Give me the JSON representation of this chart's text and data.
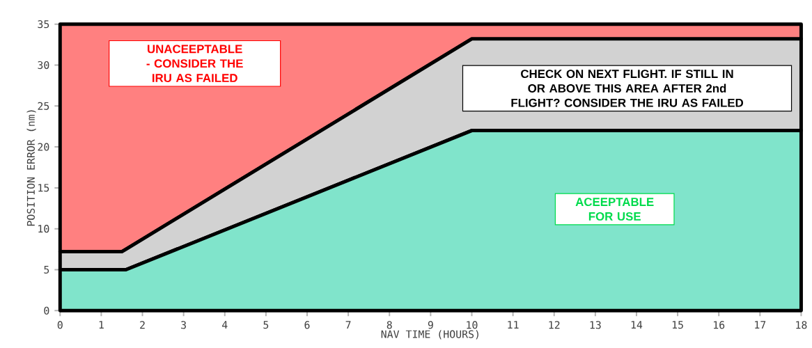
{
  "chart_data": {
    "type": "area",
    "stacked": true,
    "xlabel": "NAV TIME (HOURS)",
    "ylabel": "POSITION ERROR (nm)",
    "x": [
      0,
      1.5,
      1.6,
      10,
      18
    ],
    "series": [
      {
        "color": "#80e4cb",
        "values": [
          5,
          5,
          5,
          22,
          22
        ]
      },
      {
        "color": "#d2d2d2",
        "values": [
          2.2,
          2.2,
          2.5,
          11.2,
          11.2
        ]
      },
      {
        "color": "#ff8080",
        "values": [
          27.8,
          27.8,
          27.5,
          1.8,
          1.8
        ]
      }
    ],
    "xlim": [
      0,
      18
    ],
    "ylim": [
      0,
      35
    ],
    "xticks": [
      0,
      1,
      2,
      3,
      4,
      5,
      6,
      7,
      8,
      9,
      10,
      11,
      12,
      13,
      14,
      15,
      16,
      17,
      18
    ],
    "yticks": [
      0,
      5,
      10,
      15,
      20,
      25,
      30,
      35
    ],
    "annotations": [
      "UNACEEPTABLE - CONSIDER THE IRU AS FAILED",
      "CHECK ON NEXT FLIGHT.  IF STILL IN OR ABOVE THIS AREA AFTER 2nd FLIGHT? CONSIDER THE IRU AS FAILED",
      "ACEEPTABLE FOR USE"
    ]
  }
}
